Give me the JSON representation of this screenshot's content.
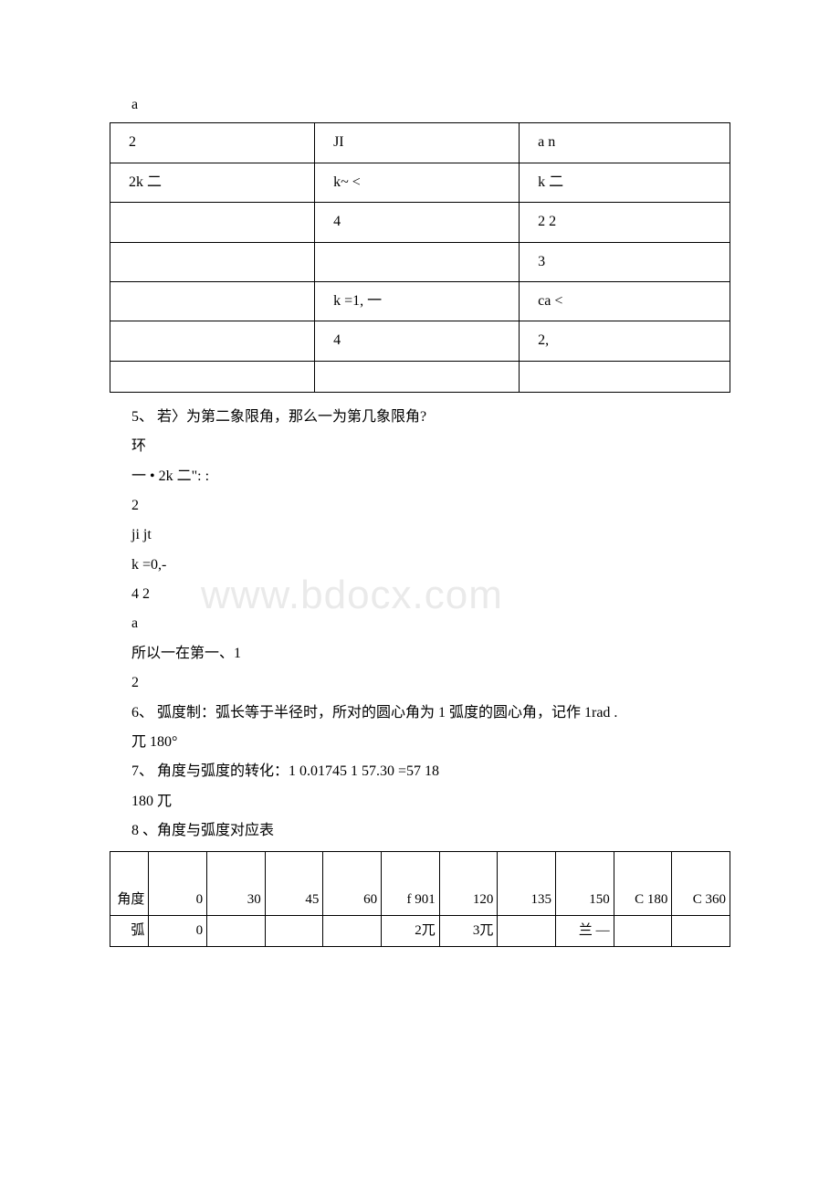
{
  "pre_line": "a",
  "table1": {
    "rows": [
      [
        "2",
        "JI",
        "a n"
      ],
      [
        "2k 二",
        "k~ <",
        "k 二"
      ],
      [
        "",
        "4",
        "2 2"
      ],
      [
        "",
        "",
        "3"
      ],
      [
        "",
        "k =1, 一",
        "ca <"
      ],
      [
        "",
        "4",
        "2,"
      ],
      [
        "",
        "",
        ""
      ]
    ]
  },
  "body_lines": [
    "5、 若〉为第二象限角，那么一为第几象限角?",
    "环",
    "一 • 2k 二\":  :",
    "2",
    "ji jt",
    "k =0,-",
    "4 2",
    "a",
    "所以一在第一、1",
    "2",
    "6、 弧度制：弧长等于半径时，所对的圆心角为 1 弧度的圆心角，记作 1rad .",
    "兀 180°",
    "7、 角度与弧度的转化：1 0.01745 1 57.30 =57 18",
    "180 兀",
    "8 、角度与弧度对应表"
  ],
  "watermark": "www.bdocx.com",
  "table2": {
    "row1": {
      "label": "角度",
      "cells": [
        "0",
        "30",
        "45",
        "60",
        "f\n901",
        "120",
        "135",
        "150",
        "C\n180",
        "C\n360"
      ]
    },
    "row2": {
      "label": "弧",
      "cells": [
        "0",
        "",
        "",
        "",
        "2兀",
        "3兀",
        "",
        "兰\n—",
        "",
        ""
      ]
    }
  }
}
